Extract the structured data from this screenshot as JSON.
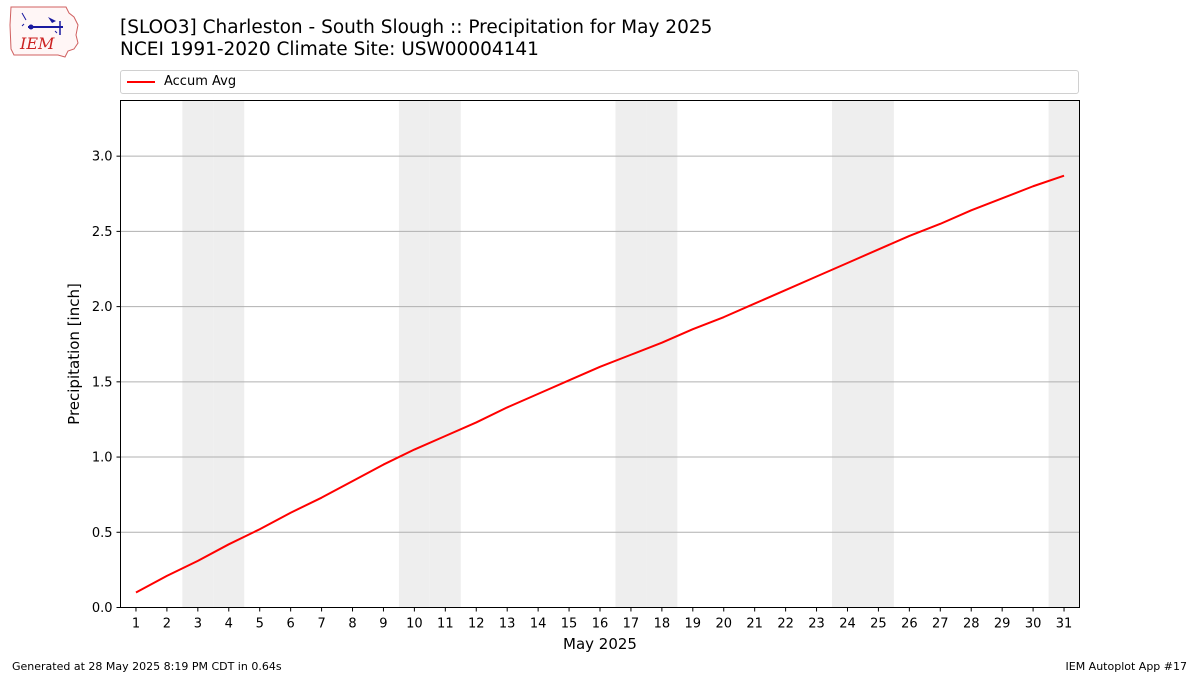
{
  "header": {
    "logo_text": "IEM",
    "title_line1": "[SLOO3] Charleston - South Slough :: Precipitation for May 2025",
    "title_line2": "NCEI 1991-2020 Climate Site: USW00004141"
  },
  "colors": {
    "series": "#ff0000",
    "weekend_band": "#eeeeee",
    "grid": "#b0b0b0"
  },
  "chart_data": {
    "type": "line",
    "xlabel": "May 2025",
    "ylabel": "Precipitation [inch]",
    "xlim": [
      0.5,
      31.5
    ],
    "ylim": [
      0,
      3.37
    ],
    "x_ticks": [
      1,
      2,
      3,
      4,
      5,
      6,
      7,
      8,
      9,
      10,
      11,
      12,
      13,
      14,
      15,
      16,
      17,
      18,
      19,
      20,
      21,
      22,
      23,
      24,
      25,
      26,
      27,
      28,
      29,
      30,
      31
    ],
    "y_ticks": [
      0.0,
      0.5,
      1.0,
      1.5,
      2.0,
      2.5,
      3.0
    ],
    "y_tick_labels": [
      "0.0",
      "0.5",
      "1.0",
      "1.5",
      "2.0",
      "2.5",
      "3.0"
    ],
    "grid": "horizontal",
    "legend": "top, above plot",
    "weekend_days": [
      3,
      4,
      10,
      11,
      17,
      18,
      24,
      25,
      31
    ],
    "series": [
      {
        "name": "Accum Avg",
        "x": [
          1,
          2,
          3,
          4,
          5,
          6,
          7,
          8,
          9,
          10,
          11,
          12,
          13,
          14,
          15,
          16,
          17,
          18,
          19,
          20,
          21,
          22,
          23,
          24,
          25,
          26,
          27,
          28,
          29,
          30,
          31
        ],
        "values": [
          0.1,
          0.21,
          0.31,
          0.42,
          0.52,
          0.63,
          0.73,
          0.84,
          0.95,
          1.05,
          1.14,
          1.23,
          1.33,
          1.42,
          1.51,
          1.6,
          1.68,
          1.76,
          1.85,
          1.93,
          2.02,
          2.11,
          2.2,
          2.29,
          2.38,
          2.47,
          2.55,
          2.64,
          2.72,
          2.8,
          2.87
        ]
      }
    ]
  },
  "footer": {
    "generated": "Generated at 28 May 2025 8:19 PM CDT in 0.64s",
    "app": "IEM Autoplot App #17"
  }
}
